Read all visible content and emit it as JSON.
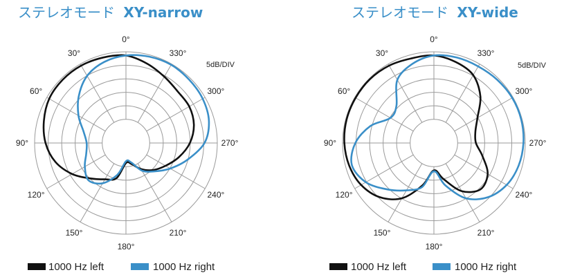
{
  "colors": {
    "left": "#111111",
    "right": "#3a8fc8",
    "title": "#3a8fc8",
    "grid": "#9a9a9a"
  },
  "chart_data": [
    {
      "type": "polar",
      "title_prefix": "ステレオモード",
      "title_suffix": "XY-narrow",
      "unit_label": "5dB/DIV",
      "angle_labels": [
        "0°",
        "30°",
        "60°",
        "90°",
        "120°",
        "150°",
        "180°",
        "210°",
        "240°",
        "270°",
        "300°",
        "330°"
      ],
      "rings": 5,
      "grid": true,
      "theta_step": 15,
      "series": [
        {
          "name": "1000 Hz left",
          "color": "#111111",
          "r": [
            0.96,
            0.97,
            0.98,
            0.98,
            0.97,
            0.93,
            0.88,
            0.8,
            0.68,
            0.55,
            0.46,
            0.4,
            0.22,
            0.24,
            0.33,
            0.42,
            0.5,
            0.6,
            0.7,
            0.77,
            0.8,
            0.8,
            0.84,
            0.9,
            0.96
          ]
        },
        {
          "name": "1000 Hz right",
          "color": "#3a8fc8",
          "r": [
            0.96,
            0.92,
            0.85,
            0.73,
            0.6,
            0.48,
            0.43,
            0.45,
            0.52,
            0.58,
            0.51,
            0.36,
            0.2,
            0.22,
            0.35,
            0.44,
            0.56,
            0.7,
            0.86,
            0.94,
            0.97,
            0.98,
            0.99,
            0.98,
            0.96
          ]
        }
      ]
    },
    {
      "type": "polar",
      "title_prefix": "ステレオモード",
      "title_suffix": "XY-wide",
      "unit_label": "5dB/DIV",
      "angle_labels": [
        "0°",
        "30°",
        "60°",
        "90°",
        "120°",
        "150°",
        "180°",
        "210°",
        "240°",
        "270°",
        "300°",
        "330°"
      ],
      "rings": 5,
      "grid": true,
      "theta_step": 15,
      "series": [
        {
          "name": "1000 Hz left",
          "color": "#111111",
          "r": [
            0.96,
            0.96,
            0.98,
            0.99,
            0.99,
            0.99,
            0.98,
            0.96,
            0.92,
            0.84,
            0.7,
            0.48,
            0.3,
            0.41,
            0.61,
            0.72,
            0.68,
            0.55,
            0.46,
            0.47,
            0.55,
            0.72,
            0.86,
            0.92,
            0.96
          ]
        },
        {
          "name": "1000 Hz right",
          "color": "#3a8fc8",
          "r": [
            0.96,
            0.9,
            0.8,
            0.58,
            0.55,
            0.72,
            0.86,
            0.93,
            0.86,
            0.72,
            0.6,
            0.5,
            0.31,
            0.48,
            0.7,
            0.84,
            0.92,
            0.96,
            0.98,
            0.99,
            0.99,
            0.98,
            0.97,
            0.97,
            0.96
          ]
        }
      ]
    }
  ],
  "legend": [
    {
      "items": [
        "1000 Hz left",
        "1000 Hz right"
      ]
    },
    {
      "items": [
        "1000 Hz left",
        "1000 Hz right"
      ]
    }
  ]
}
